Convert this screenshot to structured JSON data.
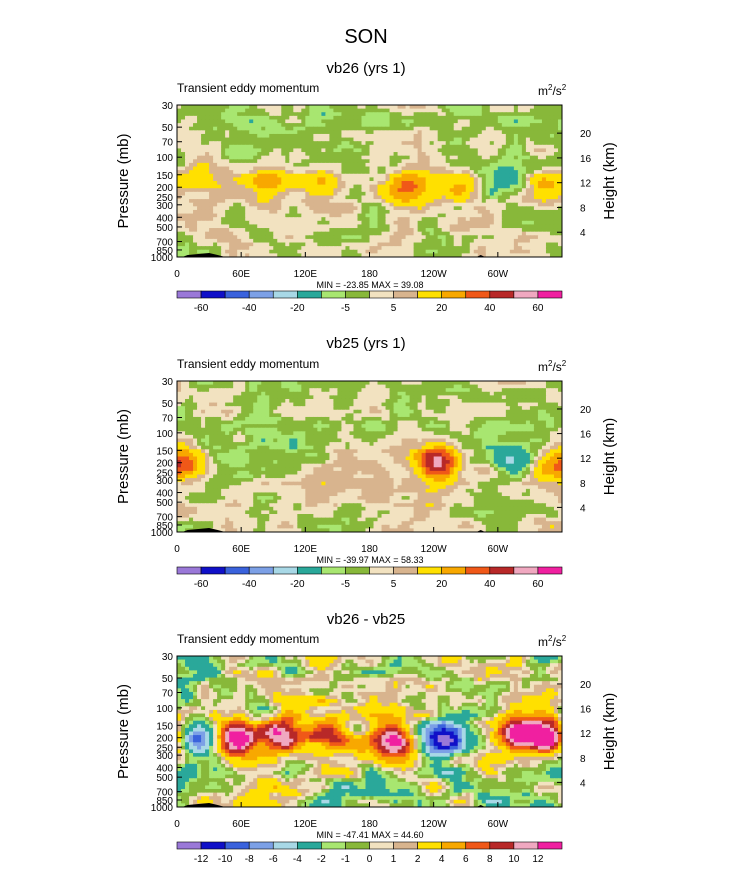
{
  "figure_title": "SON",
  "chart_data": [
    {
      "type": "heatmap",
      "title": "vb26 (yrs 1)",
      "subtitle_left": "Transient eddy momentum",
      "units": "m2/s2",
      "units_base": "m",
      "units_sup1": "2",
      "units_mid": "/s",
      "units_sup2": "2",
      "ylabel": "Pressure (mb)",
      "ylabel_right": "Height (km)",
      "y_ticks": [
        "30",
        "50",
        "70",
        "100",
        "150",
        "200",
        "250",
        "300",
        "400",
        "500",
        "700",
        "850",
        "1000"
      ],
      "y_ticks_right": [
        "20",
        "16",
        "12",
        "8",
        "4"
      ],
      "x_ticks": [
        "0",
        "60E",
        "120E",
        "180",
        "120W",
        "60W"
      ],
      "min_max_text": "MIN = -23.85  MAX = 39.08",
      "min": -23.85,
      "max": 39.08,
      "colorbar_labels": [
        "-60",
        "-40",
        "-20",
        "-5",
        "5",
        "20",
        "40",
        "60"
      ],
      "features": [
        {
          "lon": 25,
          "p": 170,
          "value": 15
        },
        {
          "lon": 85,
          "p": 180,
          "value": 22
        },
        {
          "lon": 135,
          "p": 175,
          "value": 18
        },
        {
          "lon": 215,
          "p": 200,
          "value": 32
        },
        {
          "lon": 265,
          "p": 190,
          "value": 20
        },
        {
          "lon": 295,
          "p": 170,
          "value": -10
        },
        {
          "lon": 318,
          "p": 180,
          "value": -8
        },
        {
          "lon": 345,
          "p": 200,
          "value": 18
        }
      ]
    },
    {
      "type": "heatmap",
      "title": "vb25 (yrs 1)",
      "subtitle_left": "Transient eddy momentum",
      "units": "m2/s2",
      "units_base": "m",
      "units_sup1": "2",
      "units_mid": "/s",
      "units_sup2": "2",
      "ylabel": "Pressure (mb)",
      "ylabel_right": "Height (km)",
      "y_ticks": [
        "30",
        "50",
        "70",
        "100",
        "150",
        "200",
        "250",
        "300",
        "400",
        "500",
        "700",
        "850",
        "1000"
      ],
      "y_ticks_right": [
        "20",
        "16",
        "12",
        "8",
        "4"
      ],
      "x_ticks": [
        "0",
        "60E",
        "120E",
        "180",
        "120W",
        "60W"
      ],
      "min_max_text": "MIN = -39.97  MAX = 58.33",
      "min": -39.97,
      "max": 58.33,
      "colorbar_labels": [
        "-60",
        "-40",
        "-20",
        "-5",
        "5",
        "20",
        "40",
        "60"
      ],
      "features": [
        {
          "lon": 5,
          "p": 200,
          "value": 30
        },
        {
          "lon": 55,
          "p": 210,
          "value": -10
        },
        {
          "lon": 245,
          "p": 200,
          "value": 50
        },
        {
          "lon": 315,
          "p": 190,
          "value": -30
        },
        {
          "lon": 345,
          "p": 220,
          "value": 15
        }
      ]
    },
    {
      "type": "heatmap",
      "title": "vb26 - vb25",
      "subtitle_left": "Transient eddy momentum",
      "units": "m2/s2",
      "units_base": "m",
      "units_sup1": "2",
      "units_mid": "/s",
      "units_sup2": "2",
      "ylabel": "Pressure (mb)",
      "ylabel_right": "Height (km)",
      "y_ticks": [
        "30",
        "50",
        "70",
        "100",
        "150",
        "200",
        "250",
        "300",
        "400",
        "500",
        "700",
        "850",
        "1000"
      ],
      "y_ticks_right": [
        "20",
        "16",
        "12",
        "8",
        "4"
      ],
      "x_ticks": [
        "0",
        "60E",
        "120E",
        "180",
        "120W",
        "60W"
      ],
      "min_max_text": "MIN = -47.41  MAX = 44.60",
      "min": -47.41,
      "max": 44.6,
      "colorbar_labels": [
        "-12",
        "-10",
        "-8",
        "-6",
        "-4",
        "-2",
        "-1",
        "0",
        "1",
        "2",
        "4",
        "6",
        "8",
        "10",
        "12"
      ],
      "features": [
        {
          "lon": 20,
          "p": 200,
          "value": -12
        },
        {
          "lon": 55,
          "p": 200,
          "value": 13
        },
        {
          "lon": 100,
          "p": 190,
          "value": 13
        },
        {
          "lon": 140,
          "p": 180,
          "value": 12
        },
        {
          "lon": 200,
          "p": 200,
          "value": 12
        },
        {
          "lon": 250,
          "p": 210,
          "value": -13
        },
        {
          "lon": 320,
          "p": 180,
          "value": 13
        },
        {
          "lon": 350,
          "p": 200,
          "value": 12
        }
      ]
    }
  ],
  "palettes": {
    "full": [
      "#9a78d8",
      "#1010c8",
      "#3a62dc",
      "#7ca0e6",
      "#a8d8e6",
      "#2aa89a",
      "#a8e670",
      "#88b83a",
      "#f2e2c0",
      "#d8b48e",
      "#ffe000",
      "#f8a800",
      "#f05818",
      "#b82828",
      "#f0a8c0",
      "#f020a0"
    ],
    "diff": [
      "#9a78d8",
      "#1010c8",
      "#3a62dc",
      "#7ca0e6",
      "#a8d8e6",
      "#2aa89a",
      "#a8e670",
      "#88b83a",
      "#f2e2c0",
      "#d8b48e",
      "#ffe000",
      "#f8a800",
      "#f05818",
      "#b82828",
      "#f0a8c0",
      "#f020a0"
    ],
    "topography": "#000000"
  }
}
